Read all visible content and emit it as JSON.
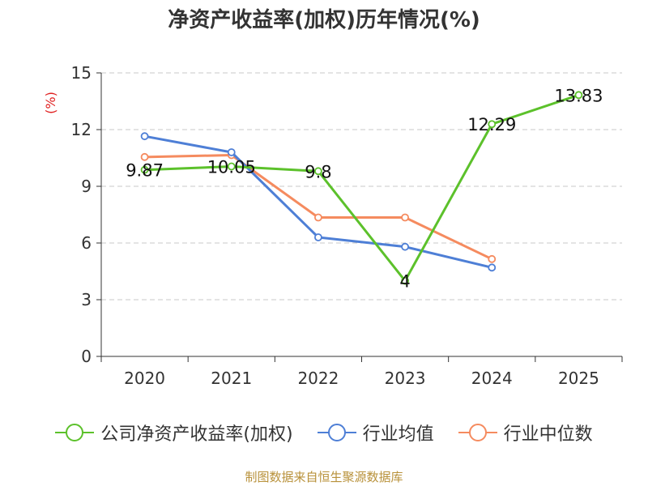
{
  "title": "净资产收益率(加权)历年情况(%)",
  "source": "制图数据来自恒生聚源数据库",
  "chart_data": {
    "type": "line",
    "title": "净资产收益率(加权)历年情况(%)",
    "ylabel": "(%)",
    "ylabel_color": "#e02020",
    "xlabel": "",
    "categories": [
      "2020",
      "2021",
      "2022",
      "2023",
      "2024",
      "2025"
    ],
    "ylim": [
      0,
      15
    ],
    "yticks": [
      "0",
      "3",
      "6",
      "9",
      "12",
      "15"
    ],
    "grid": "dashed",
    "legend_position": "bottom",
    "series": [
      {
        "name": "公司净资产收益率(加权)",
        "color": "#5cc12b",
        "values": [
          9.87,
          10.05,
          9.8,
          4,
          12.29,
          13.83
        ],
        "labels": [
          "9.87",
          "10.05",
          "9.8",
          "4",
          "12.29",
          "13.83"
        ]
      },
      {
        "name": "行业均值",
        "color": "#4e7fd6",
        "values": [
          11.65,
          10.8,
          6.3,
          5.8,
          4.7,
          null
        ]
      },
      {
        "name": "行业中位数",
        "color": "#f58b5f",
        "values": [
          10.55,
          10.65,
          7.35,
          7.35,
          5.15,
          null
        ]
      }
    ]
  }
}
